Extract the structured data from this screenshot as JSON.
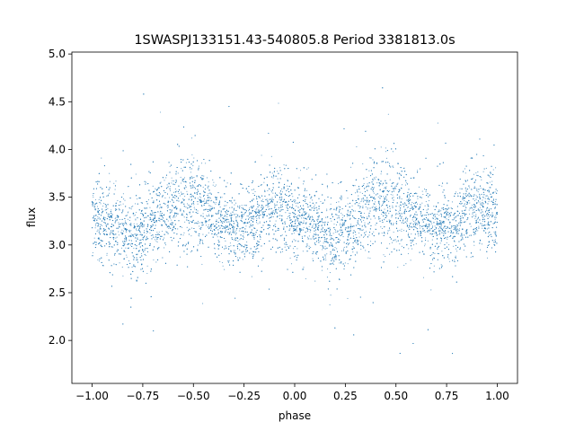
{
  "chart_data": {
    "type": "scatter",
    "title": "1SWASPJ133151.43-540805.8 Period 3381813.0s",
    "xlabel": "phase",
    "ylabel": "flux",
    "xlim": [
      -1.1,
      1.1
    ],
    "ylim": [
      1.55,
      5.02
    ],
    "x_ticks": [
      {
        "value": -1.0,
        "label": "−1.00"
      },
      {
        "value": -0.75,
        "label": "−0.75"
      },
      {
        "value": -0.5,
        "label": "−0.50"
      },
      {
        "value": -0.25,
        "label": "−0.25"
      },
      {
        "value": 0.0,
        "label": "0.00"
      },
      {
        "value": 0.25,
        "label": "0.25"
      },
      {
        "value": 0.5,
        "label": "0.50"
      },
      {
        "value": 0.75,
        "label": "0.75"
      },
      {
        "value": 1.0,
        "label": "1.00"
      }
    ],
    "y_ticks": [
      {
        "value": 2.0,
        "label": "2.0"
      },
      {
        "value": 2.5,
        "label": "2.5"
      },
      {
        "value": 3.0,
        "label": "3.0"
      },
      {
        "value": 3.5,
        "label": "3.5"
      },
      {
        "value": 4.0,
        "label": "4.0"
      },
      {
        "value": 4.5,
        "label": "4.5"
      },
      {
        "value": 5.0,
        "label": "5.0"
      }
    ],
    "grid": false,
    "point_color": "#1f77b4",
    "x_range": [
      -1.0,
      1.0
    ],
    "profile": [
      {
        "phase": -1.0,
        "flux": 3.3,
        "spread": 0.38
      },
      {
        "phase": -0.9,
        "flux": 3.2,
        "spread": 0.35
      },
      {
        "phase": -0.8,
        "flux": 3.05,
        "spread": 0.4
      },
      {
        "phase": -0.7,
        "flux": 3.25,
        "spread": 0.4
      },
      {
        "phase": -0.6,
        "flux": 3.45,
        "spread": 0.42
      },
      {
        "phase": -0.5,
        "flux": 3.45,
        "spread": 0.45
      },
      {
        "phase": -0.4,
        "flux": 3.3,
        "spread": 0.35
      },
      {
        "phase": -0.3,
        "flux": 3.15,
        "spread": 0.33
      },
      {
        "phase": -0.2,
        "flux": 3.25,
        "spread": 0.33
      },
      {
        "phase": -0.1,
        "flux": 3.4,
        "spread": 0.4
      },
      {
        "phase": 0.0,
        "flux": 3.3,
        "spread": 0.38
      },
      {
        "phase": 0.1,
        "flux": 3.2,
        "spread": 0.35
      },
      {
        "phase": 0.2,
        "flux": 3.05,
        "spread": 0.4
      },
      {
        "phase": 0.3,
        "flux": 3.25,
        "spread": 0.4
      },
      {
        "phase": 0.4,
        "flux": 3.45,
        "spread": 0.42
      },
      {
        "phase": 0.5,
        "flux": 3.45,
        "spread": 0.45
      },
      {
        "phase": 0.6,
        "flux": 3.3,
        "spread": 0.35
      },
      {
        "phase": 0.7,
        "flux": 3.15,
        "spread": 0.33
      },
      {
        "phase": 0.8,
        "flux": 3.25,
        "spread": 0.33
      },
      {
        "phase": 0.9,
        "flux": 3.4,
        "spread": 0.4
      },
      {
        "phase": 1.0,
        "flux": 3.3,
        "spread": 0.38
      }
    ]
  }
}
